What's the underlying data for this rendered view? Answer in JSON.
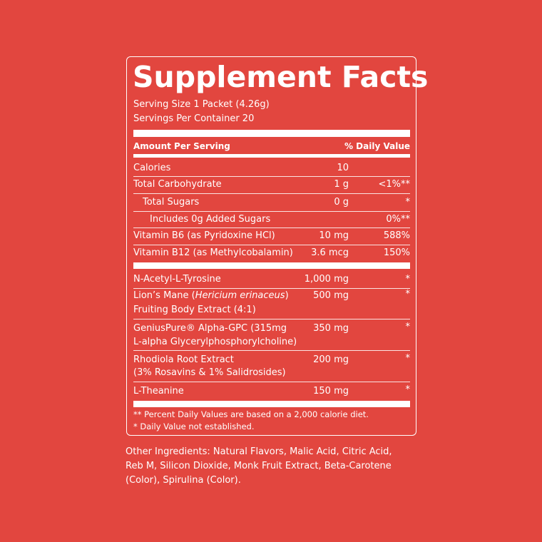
{
  "title": "Supplement Facts",
  "serving_size": "Serving Size 1 Packet (4.26g)",
  "servings_per_container": "Servings Per Container 20",
  "header": {
    "amount": "Amount Per Serving",
    "daily_value": "% Daily Value"
  },
  "nutrients": [
    {
      "name": "Calories",
      "amount": "10"
    },
    {
      "name": "Total Carbohydrate",
      "amount": "1 g",
      "daily_value": "<1%**"
    },
    {
      "name": "Total Sugars",
      "amount": "0 g",
      "daily_value": "*"
    },
    {
      "name": "Includes 0g Added Sugars",
      "daily_value": "0%**"
    },
    {
      "name": "Vitamin B6 (as Pyridoxine HCl)",
      "amount": "10 mg",
      "daily_value": "588%"
    },
    {
      "name": "Vitamin B12 (as Methylcobalamin)",
      "amount": "3.6 mcg",
      "daily_value": "150%"
    }
  ],
  "ingredients": [
    {
      "name": [
        "N-Acetyl-L-Tyrosine"
      ],
      "amount": "1,000 mg",
      "daily_value": "*"
    },
    {
      "name": [
        "Lion’s Mane (",
        "Hericium erinaceus",
        ")",
        "Fruiting Body Extract (4:1)"
      ],
      "amount": "500 mg",
      "daily_value": "*"
    },
    {
      "name": [
        "GeniusPure® Alpha-GPC (315mg",
        "L-alpha Glycerylphosphorylcholine)"
      ],
      "amount": "350 mg",
      "daily_value": "*"
    },
    {
      "name": [
        "Rhodiola Root Extract",
        "(3% Rosavins & 1% Salidrosides)"
      ],
      "amount": "200 mg",
      "daily_value": "*"
    },
    {
      "name": [
        "L-Theanine"
      ],
      "amount": "150 mg",
      "daily_value": "*"
    }
  ],
  "footnotes": [
    "** Percent Daily Values are based on a 2,000 calorie diet.",
    "* Daily Value not established."
  ],
  "other_ingredients": [
    "Other Ingredients: Natural Flavors, Malic Acid, Citric Acid,",
    "Reb M, Silicon Dioxide, Monk Fruit Extract, Beta-Carotene",
    "(Color), Spirulina (Color)."
  ]
}
